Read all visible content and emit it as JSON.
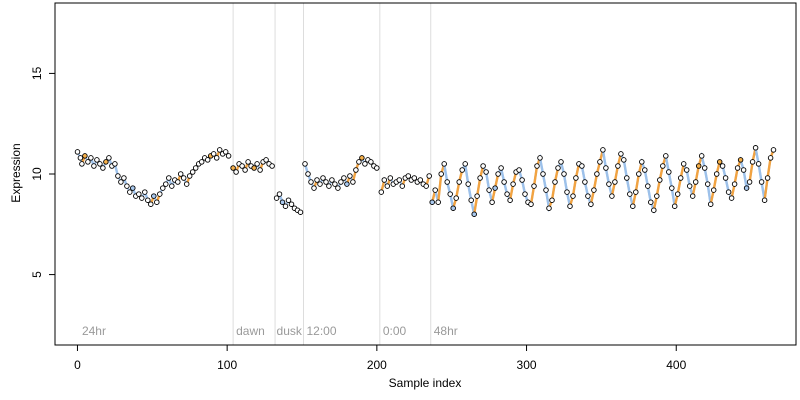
{
  "chart_data": {
    "type": "scatter",
    "xlabel": "Sample index",
    "ylabel": "Expression",
    "xlim": [
      -15,
      480
    ],
    "ylim": [
      1.5,
      18.5
    ],
    "x_ticks": [
      0,
      100,
      200,
      300,
      400
    ],
    "y_ticks": [
      5,
      10,
      15
    ],
    "grid": false,
    "legend": "none",
    "region_boundaries": [
      104,
      132,
      151,
      202,
      236
    ],
    "region_labels": [
      {
        "x": 3,
        "text": "24hr"
      },
      {
        "x": 106,
        "text": "dawn"
      },
      {
        "x": 133,
        "text": "dusk"
      },
      {
        "x": 153,
        "text": "12:00"
      },
      {
        "x": 204,
        "text": "0:00"
      },
      {
        "x": 238,
        "text": "48hr"
      }
    ],
    "colors": {
      "fit_line": "#a8c8ee",
      "up_segment": "#f2a341",
      "down_segment": "#9dc1ea",
      "point_fill_default": "#ffffff",
      "point_fill_high": "#f5b04a",
      "point_fill_low": "#a9c9ef",
      "boundary": "#dddddd"
    },
    "series": [
      {
        "points": [
          [
            0,
            11.1
          ],
          [
            2,
            10.8
          ],
          [
            3,
            10.5
          ],
          [
            5,
            10.9
          ],
          [
            7,
            10.6
          ],
          [
            9,
            10.8
          ],
          [
            11,
            10.4
          ],
          [
            13,
            10.7
          ],
          [
            15,
            10.5
          ],
          [
            17,
            10.3
          ],
          [
            19,
            10.6
          ],
          [
            21,
            10.8
          ],
          [
            23,
            10.4
          ],
          [
            25,
            10.5
          ],
          [
            27,
            9.9
          ],
          [
            29,
            9.6
          ],
          [
            31,
            9.8
          ],
          [
            33,
            9.4
          ],
          [
            35,
            9.1
          ],
          [
            37,
            9.3
          ],
          [
            39,
            8.9
          ],
          [
            41,
            9.0
          ],
          [
            43,
            8.8
          ],
          [
            45,
            9.1
          ],
          [
            47,
            8.7
          ],
          [
            49,
            8.5
          ],
          [
            51,
            8.9
          ],
          [
            53,
            8.6
          ],
          [
            55,
            9.0
          ],
          [
            57,
            9.3
          ],
          [
            59,
            9.5
          ],
          [
            61,
            9.8
          ],
          [
            63,
            9.4
          ],
          [
            65,
            9.7
          ],
          [
            67,
            9.6
          ],
          [
            69,
            10.0
          ],
          [
            71,
            9.8
          ],
          [
            73,
            9.5
          ],
          [
            75,
            9.9
          ],
          [
            77,
            10.1
          ],
          [
            79,
            10.3
          ],
          [
            81,
            10.5
          ],
          [
            83,
            10.6
          ],
          [
            85,
            10.8
          ],
          [
            87,
            10.7
          ],
          [
            89,
            10.9
          ],
          [
            91,
            11.0
          ],
          [
            93,
            10.8
          ],
          [
            95,
            11.2
          ],
          [
            97,
            11.0
          ],
          [
            99,
            11.1
          ],
          [
            101,
            10.9
          ],
          [
            104,
            10.3
          ],
          [
            106,
            10.1
          ],
          [
            108,
            10.5
          ],
          [
            110,
            10.4
          ],
          [
            112,
            10.2
          ],
          [
            114,
            10.6
          ],
          [
            116,
            10.4
          ],
          [
            118,
            10.3
          ],
          [
            120,
            10.5
          ],
          [
            122,
            10.2
          ],
          [
            124,
            10.6
          ],
          [
            126,
            10.7
          ],
          [
            128,
            10.5
          ],
          [
            130,
            10.4
          ],
          [
            133,
            8.8
          ],
          [
            135,
            9.0
          ],
          [
            137,
            8.6
          ],
          [
            139,
            8.4
          ],
          [
            141,
            8.7
          ],
          [
            143,
            8.5
          ],
          [
            145,
            8.3
          ],
          [
            147,
            8.2
          ],
          [
            149,
            8.1
          ],
          [
            152,
            10.5
          ],
          [
            154,
            10.0
          ],
          [
            156,
            9.6
          ],
          [
            158,
            9.3
          ],
          [
            160,
            9.7
          ],
          [
            162,
            9.5
          ],
          [
            164,
            9.8
          ],
          [
            166,
            9.6
          ],
          [
            168,
            9.4
          ],
          [
            170,
            9.7
          ],
          [
            172,
            9.5
          ],
          [
            174,
            9.3
          ],
          [
            176,
            9.6
          ],
          [
            178,
            9.8
          ],
          [
            180,
            9.5
          ],
          [
            182,
            9.9
          ],
          [
            184,
            9.6
          ],
          [
            186,
            10.2
          ],
          [
            188,
            10.6
          ],
          [
            190,
            10.8
          ],
          [
            192,
            10.5
          ],
          [
            194,
            10.7
          ],
          [
            196,
            10.6
          ],
          [
            198,
            10.4
          ],
          [
            200,
            10.3
          ],
          [
            203,
            9.1
          ],
          [
            205,
            9.7
          ],
          [
            207,
            9.4
          ],
          [
            209,
            9.8
          ],
          [
            211,
            9.5
          ],
          [
            213,
            9.6
          ],
          [
            215,
            9.7
          ],
          [
            217,
            9.4
          ],
          [
            219,
            9.8
          ],
          [
            221,
            9.9
          ],
          [
            223,
            9.7
          ],
          [
            225,
            9.8
          ],
          [
            227,
            9.6
          ],
          [
            229,
            9.7
          ],
          [
            231,
            9.5
          ],
          [
            233,
            9.4
          ],
          [
            235,
            9.9
          ],
          [
            237,
            8.6
          ],
          [
            239,
            9.2
          ],
          [
            241,
            8.6
          ],
          [
            243,
            10.0
          ],
          [
            245,
            10.5
          ],
          [
            247,
            9.6
          ],
          [
            249,
            9.0
          ],
          [
            251,
            8.3
          ],
          [
            253,
            8.8
          ],
          [
            255,
            9.6
          ],
          [
            257,
            10.2
          ],
          [
            259,
            10.5
          ],
          [
            261,
            9.5
          ],
          [
            263,
            8.7
          ],
          [
            265,
            8.0
          ],
          [
            267,
            8.9
          ],
          [
            269,
            9.8
          ],
          [
            271,
            10.4
          ],
          [
            273,
            10.1
          ],
          [
            275,
            9.2
          ],
          [
            277,
            8.6
          ],
          [
            279,
            9.3
          ],
          [
            281,
            10.0
          ],
          [
            283,
            10.3
          ],
          [
            285,
            9.6
          ],
          [
            287,
            9.0
          ],
          [
            289,
            8.7
          ],
          [
            291,
            9.5
          ],
          [
            293,
            10.1
          ],
          [
            295,
            10.2
          ],
          [
            297,
            9.7
          ],
          [
            299,
            9.0
          ],
          [
            301,
            8.6
          ],
          [
            303,
            8.5
          ],
          [
            305,
            9.4
          ],
          [
            307,
            10.4
          ],
          [
            309,
            10.8
          ],
          [
            311,
            10.0
          ],
          [
            313,
            9.2
          ],
          [
            315,
            8.3
          ],
          [
            317,
            8.7
          ],
          [
            319,
            9.6
          ],
          [
            321,
            10.3
          ],
          [
            323,
            10.6
          ],
          [
            325,
            10.0
          ],
          [
            327,
            9.1
          ],
          [
            329,
            8.4
          ],
          [
            331,
            8.9
          ],
          [
            333,
            9.8
          ],
          [
            335,
            10.5
          ],
          [
            337,
            10.4
          ],
          [
            339,
            9.6
          ],
          [
            341,
            8.9
          ],
          [
            343,
            8.5
          ],
          [
            345,
            9.2
          ],
          [
            347,
            10.0
          ],
          [
            349,
            10.6
          ],
          [
            351,
            11.2
          ],
          [
            353,
            10.3
          ],
          [
            355,
            9.5
          ],
          [
            357,
            8.9
          ],
          [
            359,
            9.6
          ],
          [
            361,
            10.4
          ],
          [
            363,
            11.0
          ],
          [
            365,
            10.7
          ],
          [
            367,
            9.8
          ],
          [
            369,
            9.0
          ],
          [
            371,
            8.4
          ],
          [
            373,
            9.1
          ],
          [
            375,
            10.0
          ],
          [
            377,
            10.6
          ],
          [
            379,
            10.2
          ],
          [
            381,
            9.4
          ],
          [
            383,
            8.6
          ],
          [
            385,
            8.2
          ],
          [
            387,
            8.9
          ],
          [
            389,
            9.7
          ],
          [
            391,
            10.4
          ],
          [
            393,
            10.9
          ],
          [
            395,
            10.1
          ],
          [
            397,
            9.3
          ],
          [
            399,
            8.4
          ],
          [
            401,
            9.0
          ],
          [
            403,
            9.8
          ],
          [
            405,
            10.5
          ],
          [
            407,
            10.2
          ],
          [
            409,
            9.4
          ],
          [
            411,
            8.9
          ],
          [
            413,
            9.6
          ],
          [
            415,
            10.4
          ],
          [
            417,
            10.9
          ],
          [
            419,
            10.3
          ],
          [
            421,
            9.5
          ],
          [
            423,
            8.5
          ],
          [
            425,
            9.2
          ],
          [
            427,
            10.0
          ],
          [
            429,
            10.6
          ],
          [
            431,
            10.4
          ],
          [
            433,
            9.8
          ],
          [
            435,
            9.1
          ],
          [
            437,
            8.8
          ],
          [
            439,
            9.5
          ],
          [
            441,
            10.3
          ],
          [
            443,
            10.7
          ],
          [
            445,
            10.2
          ],
          [
            447,
            9.3
          ],
          [
            449,
            9.6
          ],
          [
            451,
            10.6
          ],
          [
            453,
            11.3
          ],
          [
            455,
            10.5
          ],
          [
            457,
            9.6
          ],
          [
            459,
            8.7
          ],
          [
            461,
            9.8
          ],
          [
            463,
            10.8
          ],
          [
            465,
            11.2
          ]
        ]
      }
    ]
  }
}
